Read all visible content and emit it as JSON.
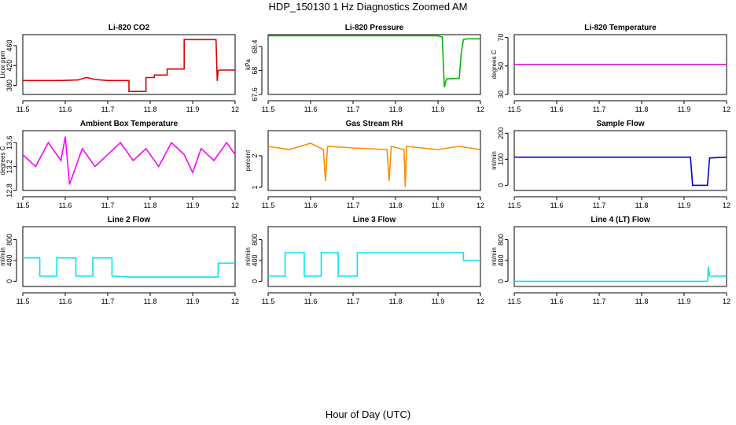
{
  "title": "HDP_150130  1 Hz Diagnostics Zoomed AM",
  "xaxis_title": "Hour of Day (UTC)",
  "chart_data": [
    {
      "type": "line",
      "title": "Li-820 CO2",
      "ylabel": "Licor ppm",
      "color": "#dd0000",
      "xlim": [
        11.5,
        12.0
      ],
      "ylim": [
        362,
        482
      ],
      "xticks": [
        11.5,
        11.6,
        11.7,
        11.8,
        11.9,
        12.0
      ],
      "yticks": [
        380,
        420,
        460
      ],
      "series": [
        {
          "x": [
            11.5,
            11.59,
            11.63,
            11.65,
            11.67,
            11.7,
            11.74,
            11.75,
            11.75,
            11.79,
            11.79,
            11.81,
            11.81,
            11.84,
            11.84,
            11.88,
            11.88,
            11.955,
            11.958,
            11.96,
            11.965,
            12.0
          ],
          "y": [
            390,
            390,
            391,
            396,
            392,
            390,
            390,
            390,
            368,
            368,
            396,
            396,
            401,
            401,
            413,
            413,
            472,
            472,
            389,
            410,
            411,
            411
          ]
        }
      ]
    },
    {
      "type": "line",
      "title": "Li-820 Pressure",
      "ylabel": "kPa",
      "color": "#00bb00",
      "xlim": [
        11.5,
        12.0
      ],
      "ylim": [
        67.6,
        68.6
      ],
      "xticks": [
        11.5,
        11.6,
        11.7,
        11.8,
        11.9,
        12.0
      ],
      "yticks": [
        67.6,
        68.0,
        68.4
      ],
      "series": [
        {
          "x": [
            11.5,
            11.9,
            11.91,
            11.915,
            11.92,
            11.95,
            11.955,
            11.96,
            11.97,
            12.0
          ],
          "y": [
            68.58,
            68.58,
            68.56,
            67.72,
            67.86,
            67.87,
            68.3,
            68.52,
            68.53,
            68.53
          ]
        }
      ]
    },
    {
      "type": "line",
      "title": "Li-820 Temperature",
      "ylabel": "degrees C",
      "color": "#cc00cc",
      "xlim": [
        11.5,
        12.0
      ],
      "ylim": [
        30,
        72
      ],
      "xticks": [
        11.5,
        11.6,
        11.7,
        11.8,
        11.9,
        12.0
      ],
      "yticks": [
        30,
        50,
        70
      ],
      "series": [
        {
          "x": [
            11.5,
            12.0
          ],
          "y": [
            51,
            51
          ]
        }
      ]
    },
    {
      "type": "line",
      "title": "Ambient Box Temperature",
      "ylabel": "degrees C",
      "color": "#ff00ff",
      "xlim": [
        11.5,
        12.0
      ],
      "ylim": [
        12.8,
        13.8
      ],
      "xticks": [
        11.5,
        11.6,
        11.7,
        11.8,
        11.9,
        12.0
      ],
      "yticks": [
        12.8,
        13.2,
        13.6
      ],
      "series": [
        {
          "x": [
            11.5,
            11.53,
            11.56,
            11.59,
            11.6,
            11.61,
            11.64,
            11.67,
            11.7,
            11.73,
            11.76,
            11.79,
            11.82,
            11.85,
            11.88,
            11.9,
            11.92,
            11.95,
            11.98,
            12.0
          ],
          "y": [
            13.4,
            13.2,
            13.6,
            13.3,
            13.7,
            12.9,
            13.5,
            13.2,
            13.4,
            13.6,
            13.3,
            13.5,
            13.2,
            13.6,
            13.4,
            13.1,
            13.5,
            13.3,
            13.6,
            13.4
          ]
        }
      ]
    },
    {
      "type": "line",
      "title": "Gas Stream RH",
      "ylabel": "percent",
      "color": "#ff8c00",
      "xlim": [
        11.5,
        12.0
      ],
      "ylim": [
        0.9,
        2.8
      ],
      "xticks": [
        11.5,
        11.6,
        11.7,
        11.8,
        11.9,
        12.0
      ],
      "yticks": [
        1.0,
        2.0
      ],
      "series": [
        {
          "x": [
            11.5,
            11.55,
            11.6,
            11.63,
            11.635,
            11.64,
            11.7,
            11.78,
            11.785,
            11.79,
            11.82,
            11.823,
            11.826,
            11.9,
            11.95,
            12.0
          ],
          "y": [
            2.3,
            2.2,
            2.4,
            2.2,
            1.2,
            2.3,
            2.25,
            2.2,
            1.2,
            2.3,
            2.2,
            1.0,
            2.3,
            2.2,
            2.3,
            2.2
          ]
        }
      ]
    },
    {
      "type": "line",
      "title": "Sample Flow",
      "ylabel": "ml/min",
      "color": "#0000cc",
      "xlim": [
        11.5,
        12.0
      ],
      "ylim": [
        -20,
        210
      ],
      "xticks": [
        11.5,
        11.6,
        11.7,
        11.8,
        11.9,
        12.0
      ],
      "yticks": [
        0,
        100,
        200
      ],
      "series": [
        {
          "x": [
            11.5,
            11.915,
            11.92,
            11.955,
            11.96,
            12.0
          ],
          "y": [
            108,
            108,
            0,
            0,
            105,
            108
          ]
        }
      ]
    },
    {
      "type": "line",
      "title": "Line 2 Flow",
      "ylabel": "ml/min",
      "color": "#00e5ee",
      "xlim": [
        11.5,
        12.0
      ],
      "ylim": [
        -100,
        1050
      ],
      "xticks": [
        11.5,
        11.6,
        11.7,
        11.8,
        11.9,
        12.0
      ],
      "yticks": [
        0,
        400,
        800
      ],
      "series": [
        {
          "x": [
            11.5,
            11.54,
            11.54,
            11.58,
            11.58,
            11.625,
            11.625,
            11.665,
            11.665,
            11.71,
            11.71,
            11.75,
            11.96,
            11.96,
            12.0
          ],
          "y": [
            450,
            450,
            100,
            100,
            450,
            450,
            100,
            100,
            450,
            450,
            100,
            80,
            80,
            350,
            350
          ]
        }
      ]
    },
    {
      "type": "line",
      "title": "Line 3 Flow",
      "ylabel": "ml/min",
      "color": "#00e5ee",
      "xlim": [
        11.5,
        12.0
      ],
      "ylim": [
        -100,
        1050
      ],
      "xticks": [
        11.5,
        11.6,
        11.7,
        11.8,
        11.9,
        12.0
      ],
      "yticks": [
        0,
        400,
        800
      ],
      "series": [
        {
          "x": [
            11.5,
            11.54,
            11.54,
            11.585,
            11.585,
            11.625,
            11.625,
            11.665,
            11.665,
            11.71,
            11.71,
            11.96,
            11.96,
            12.0
          ],
          "y": [
            100,
            100,
            550,
            550,
            100,
            100,
            550,
            550,
            100,
            100,
            550,
            550,
            400,
            400
          ]
        }
      ]
    },
    {
      "type": "line",
      "title": "Line 4 (LT) Flow",
      "ylabel": "ml/min",
      "color": "#00e5ee",
      "xlim": [
        11.5,
        12.0
      ],
      "ylim": [
        -100,
        1050
      ],
      "xticks": [
        11.5,
        11.6,
        11.7,
        11.8,
        11.9,
        12.0
      ],
      "yticks": [
        0,
        400,
        800
      ],
      "series": [
        {
          "x": [
            11.5,
            11.955,
            11.957,
            11.96,
            11.962,
            12.0
          ],
          "y": [
            0,
            0,
            280,
            100,
            100,
            100
          ]
        }
      ]
    }
  ]
}
